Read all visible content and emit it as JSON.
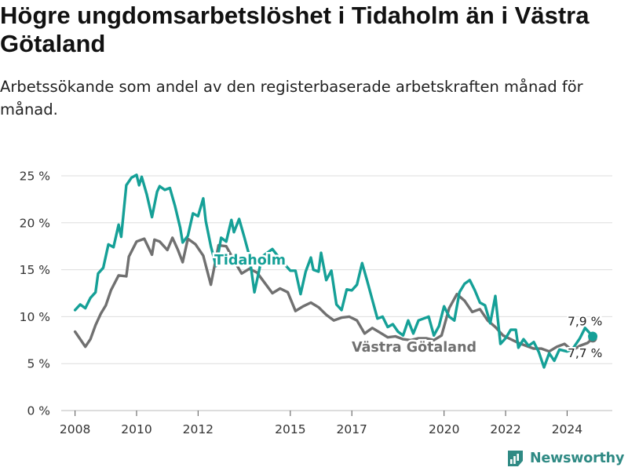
{
  "title": "Högre ungdomsarbetslöshet i Tidaholm än i Västra Götaland",
  "subtitle": "Arbetssökande som andel av den registerbaserade arbetskraften månad för månad.",
  "brand": "Newsworthy",
  "colors": {
    "Tidaholm": "#15a097",
    "Västra Götaland": "#707070",
    "grid": "#dddddd",
    "brand": "#2f8a84"
  },
  "icons": {
    "brand": "bar-chart-logo-icon"
  },
  "chart_data": {
    "type": "line",
    "ylim": [
      0,
      25
    ],
    "y_ticks": [
      0,
      5,
      10,
      15,
      20,
      25
    ],
    "y_tick_labels": [
      "0 %",
      "5 %",
      "10 %",
      "15 %",
      "20 %",
      "25 %"
    ],
    "x_ticks": [
      "2008",
      "2010",
      "2012",
      "2015",
      "2017",
      "2020",
      "2022",
      "2024"
    ],
    "grid": true,
    "series": [
      {
        "name": "Tidaholm",
        "last_label": "7,9 %",
        "points": [
          [
            "2008-01",
            10.7
          ],
          [
            "2008-03",
            11.3
          ],
          [
            "2008-05",
            10.9
          ],
          [
            "2008-07",
            12.0
          ],
          [
            "2008-09",
            12.6
          ],
          [
            "2008-10",
            14.6
          ],
          [
            "2008-12",
            15.2
          ],
          [
            "2009-02",
            17.7
          ],
          [
            "2009-04",
            17.4
          ],
          [
            "2009-06",
            19.8
          ],
          [
            "2009-07",
            18.5
          ],
          [
            "2009-09",
            24.0
          ],
          [
            "2009-11",
            24.8
          ],
          [
            "2010-01",
            25.1
          ],
          [
            "2010-02",
            24.0
          ],
          [
            "2010-03",
            24.9
          ],
          [
            "2010-05",
            23.0
          ],
          [
            "2010-07",
            20.6
          ],
          [
            "2010-09",
            23.3
          ],
          [
            "2010-10",
            23.9
          ],
          [
            "2010-12",
            23.5
          ],
          [
            "2011-02",
            23.7
          ],
          [
            "2011-04",
            21.8
          ],
          [
            "2011-06",
            19.5
          ],
          [
            "2011-07",
            17.9
          ],
          [
            "2011-09",
            18.6
          ],
          [
            "2011-11",
            21.0
          ],
          [
            "2012-01",
            20.7
          ],
          [
            "2012-03",
            22.6
          ],
          [
            "2012-04",
            20.2
          ],
          [
            "2012-06",
            17.5
          ],
          [
            "2012-08",
            15.4
          ],
          [
            "2012-10",
            18.4
          ],
          [
            "2012-12",
            18.0
          ],
          [
            "2013-02",
            20.3
          ],
          [
            "2013-03",
            19.0
          ],
          [
            "2013-05",
            20.4
          ],
          [
            "2013-07",
            18.5
          ],
          [
            "2013-09",
            16.5
          ],
          [
            "2013-11",
            12.6
          ],
          [
            "2014-02",
            16.4
          ],
          [
            "2014-06",
            17.2
          ],
          [
            "2014-10",
            15.8
          ],
          [
            "2015-01",
            14.9
          ],
          [
            "2015-03",
            14.9
          ],
          [
            "2015-05",
            12.4
          ],
          [
            "2015-07",
            14.8
          ],
          [
            "2015-09",
            16.3
          ],
          [
            "2015-10",
            15.0
          ],
          [
            "2015-12",
            14.8
          ],
          [
            "2016-01",
            16.8
          ],
          [
            "2016-03",
            13.9
          ],
          [
            "2016-05",
            14.9
          ],
          [
            "2016-07",
            11.3
          ],
          [
            "2016-09",
            10.7
          ],
          [
            "2016-11",
            12.9
          ],
          [
            "2017-01",
            12.8
          ],
          [
            "2017-03",
            13.4
          ],
          [
            "2017-05",
            15.7
          ],
          [
            "2017-07",
            13.8
          ],
          [
            "2017-09",
            11.8
          ],
          [
            "2017-11",
            9.8
          ],
          [
            "2018-01",
            10.0
          ],
          [
            "2018-03",
            8.9
          ],
          [
            "2018-05",
            9.2
          ],
          [
            "2018-07",
            8.4
          ],
          [
            "2018-09",
            8.0
          ],
          [
            "2018-11",
            9.6
          ],
          [
            "2019-01",
            8.2
          ],
          [
            "2019-03",
            9.6
          ],
          [
            "2019-05",
            9.8
          ],
          [
            "2019-07",
            10.0
          ],
          [
            "2019-09",
            8.0
          ],
          [
            "2019-11",
            9.0
          ],
          [
            "2020-01",
            11.1
          ],
          [
            "2020-03",
            10.0
          ],
          [
            "2020-05",
            9.6
          ],
          [
            "2020-07",
            12.6
          ],
          [
            "2020-09",
            13.5
          ],
          [
            "2020-11",
            13.9
          ],
          [
            "2021-01",
            12.8
          ],
          [
            "2021-03",
            11.5
          ],
          [
            "2021-05",
            11.2
          ],
          [
            "2021-07",
            9.3
          ],
          [
            "2021-09",
            12.2
          ],
          [
            "2021-11",
            7.1
          ],
          [
            "2022-01",
            7.7
          ],
          [
            "2022-03",
            8.6
          ],
          [
            "2022-05",
            8.6
          ],
          [
            "2022-06",
            6.7
          ],
          [
            "2022-08",
            7.6
          ],
          [
            "2022-10",
            6.9
          ],
          [
            "2022-12",
            7.3
          ],
          [
            "2023-02",
            6.2
          ],
          [
            "2023-04",
            4.6
          ],
          [
            "2023-06",
            6.1
          ],
          [
            "2023-08",
            5.3
          ],
          [
            "2023-10",
            6.5
          ],
          [
            "2024-01",
            6.3
          ],
          [
            "2024-03",
            6.5
          ],
          [
            "2024-06",
            7.7
          ],
          [
            "2024-08",
            8.8
          ],
          [
            "2024-11",
            7.9
          ]
        ]
      },
      {
        "name": "Västra Götaland",
        "last_label": "7,7 %",
        "points": [
          [
            "2008-01",
            8.4
          ],
          [
            "2008-03",
            7.6
          ],
          [
            "2008-05",
            6.8
          ],
          [
            "2008-07",
            7.6
          ],
          [
            "2008-09",
            9.1
          ],
          [
            "2008-11",
            10.3
          ],
          [
            "2009-01",
            11.2
          ],
          [
            "2009-03",
            12.8
          ],
          [
            "2009-06",
            14.4
          ],
          [
            "2009-09",
            14.3
          ],
          [
            "2009-10",
            16.4
          ],
          [
            "2010-01",
            18.0
          ],
          [
            "2010-04",
            18.3
          ],
          [
            "2010-07",
            16.6
          ],
          [
            "2010-08",
            18.2
          ],
          [
            "2010-10",
            18.0
          ],
          [
            "2011-01",
            17.1
          ],
          [
            "2011-03",
            18.4
          ],
          [
            "2011-05",
            17.2
          ],
          [
            "2011-07",
            15.8
          ],
          [
            "2011-09",
            18.3
          ],
          [
            "2011-12",
            17.7
          ],
          [
            "2012-03",
            16.5
          ],
          [
            "2012-06",
            13.4
          ],
          [
            "2012-09",
            17.6
          ],
          [
            "2012-12",
            17.5
          ],
          [
            "2013-03",
            16.0
          ],
          [
            "2013-06",
            14.6
          ],
          [
            "2013-09",
            15.1
          ],
          [
            "2013-12",
            14.7
          ],
          [
            "2014-03",
            13.6
          ],
          [
            "2014-06",
            12.5
          ],
          [
            "2014-09",
            13.0
          ],
          [
            "2014-12",
            12.6
          ],
          [
            "2015-03",
            10.6
          ],
          [
            "2015-06",
            11.1
          ],
          [
            "2015-09",
            11.5
          ],
          [
            "2015-12",
            11.0
          ],
          [
            "2016-03",
            10.2
          ],
          [
            "2016-06",
            9.6
          ],
          [
            "2016-09",
            9.9
          ],
          [
            "2016-12",
            10.0
          ],
          [
            "2017-03",
            9.6
          ],
          [
            "2017-06",
            8.2
          ],
          [
            "2017-09",
            8.8
          ],
          [
            "2017-12",
            8.3
          ],
          [
            "2018-03",
            7.8
          ],
          [
            "2018-06",
            7.9
          ],
          [
            "2018-09",
            7.6
          ],
          [
            "2018-12",
            7.5
          ],
          [
            "2019-03",
            7.7
          ],
          [
            "2019-06",
            7.7
          ],
          [
            "2019-09",
            7.5
          ],
          [
            "2019-12",
            8.0
          ],
          [
            "2020-03",
            10.9
          ],
          [
            "2020-06",
            12.4
          ],
          [
            "2020-09",
            11.7
          ],
          [
            "2020-12",
            10.5
          ],
          [
            "2021-03",
            10.8
          ],
          [
            "2021-06",
            9.6
          ],
          [
            "2021-09",
            8.9
          ],
          [
            "2021-12",
            8.0
          ],
          [
            "2022-03",
            7.6
          ],
          [
            "2022-06",
            7.2
          ],
          [
            "2022-09",
            6.9
          ],
          [
            "2022-12",
            6.6
          ],
          [
            "2023-03",
            6.6
          ],
          [
            "2023-06",
            6.3
          ],
          [
            "2023-09",
            6.8
          ],
          [
            "2023-12",
            7.1
          ],
          [
            "2024-03",
            6.4
          ],
          [
            "2024-06",
            6.9
          ],
          [
            "2024-09",
            7.2
          ],
          [
            "2024-11",
            7.7
          ]
        ]
      }
    ]
  }
}
